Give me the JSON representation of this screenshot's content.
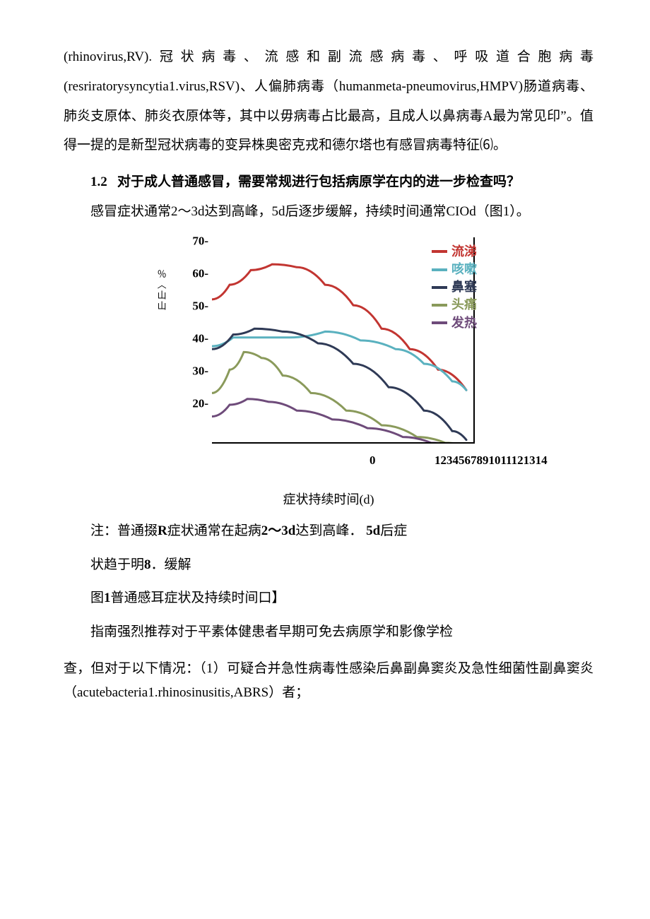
{
  "para1": "(rhinovirus,RV).冠状病毒、流感和副流感病毒、呼吸道合胞病毒(resriratorysyncytia1.virus,RSV)、人偏肺病毒（humanmeta-pneumovirus,HMPV)肠道病毒、肺炎支原体、肺炎衣原体等，其中以毋病毒占比最高，且成人以鼻病毒A最为常见印”。值得一提的是新型冠状病毒的变异株奥密克戎和德尔塔也有感冒病毒特征⑹。",
  "section": {
    "num": "1.2",
    "title": "对于成人普通感冒，需要常规进行包括病原学在内的进一步检查吗？"
  },
  "para2": "感冒症状通常2～3d达到高峰，5d后逐步缓解，持续时间通常CIOd（图1）。",
  "chart": {
    "type": "line",
    "y_ticks": [
      "70-",
      "60-",
      "50-",
      "40-",
      "30-",
      "20-"
    ],
    "y_positions": [
      10,
      56,
      102,
      148,
      194,
      240
    ],
    "y_label": "％〈山山",
    "x_zero": "0",
    "x_nums": "1234567891011121314",
    "background_color": "#ffffff",
    "border_color": "#000000",
    "legend": [
      {
        "label": "流涕",
        "color": "#c23531"
      },
      {
        "label": "咳嗽",
        "color": "#5ab1bf"
      },
      {
        "label": "鼻塞",
        "color": "#2f3a56"
      },
      {
        "label": "头痛",
        "color": "#8a9a5b"
      },
      {
        "label": "发热",
        "color": "#6e4b7a"
      }
    ],
    "series": [
      {
        "name": "runny",
        "color": "#c23531",
        "width": 3,
        "points": [
          [
            0,
            50
          ],
          [
            25,
            55
          ],
          [
            55,
            60
          ],
          [
            85,
            62
          ],
          [
            120,
            61
          ],
          [
            160,
            55
          ],
          [
            200,
            48
          ],
          [
            240,
            40
          ],
          [
            280,
            33
          ],
          [
            320,
            26
          ],
          [
            360,
            19
          ]
        ]
      },
      {
        "name": "cough",
        "color": "#5ab1bf",
        "width": 3,
        "points": [
          [
            0,
            34
          ],
          [
            30,
            37
          ],
          [
            70,
            37
          ],
          [
            110,
            37
          ],
          [
            160,
            39
          ],
          [
            210,
            36
          ],
          [
            260,
            33
          ],
          [
            300,
            28
          ],
          [
            340,
            22
          ],
          [
            360,
            19
          ]
        ]
      },
      {
        "name": "congestion",
        "color": "#2f3a56",
        "width": 3,
        "points": [
          [
            0,
            33
          ],
          [
            30,
            38
          ],
          [
            60,
            40
          ],
          [
            100,
            39
          ],
          [
            150,
            35
          ],
          [
            200,
            28
          ],
          [
            250,
            20
          ],
          [
            300,
            12
          ],
          [
            340,
            5
          ],
          [
            360,
            2
          ]
        ]
      },
      {
        "name": "headache",
        "color": "#8a9a5b",
        "width": 3,
        "points": [
          [
            0,
            18
          ],
          [
            25,
            26
          ],
          [
            45,
            32
          ],
          [
            70,
            30
          ],
          [
            100,
            24
          ],
          [
            140,
            18
          ],
          [
            190,
            12
          ],
          [
            240,
            7
          ],
          [
            290,
            3
          ],
          [
            330,
            1
          ],
          [
            360,
            0
          ]
        ]
      },
      {
        "name": "fever",
        "color": "#6e4b7a",
        "width": 3,
        "points": [
          [
            0,
            10
          ],
          [
            25,
            14
          ],
          [
            50,
            16
          ],
          [
            80,
            15
          ],
          [
            120,
            12
          ],
          [
            170,
            9
          ],
          [
            220,
            6
          ],
          [
            270,
            3
          ],
          [
            310,
            1
          ],
          [
            340,
            0
          ]
        ]
      }
    ]
  },
  "caption_axis": "症状持续时间(d)",
  "note1_a": "注：普通掇",
  "note1_b": "R",
  "note1_c": "症状通常在起病",
  "note1_d": "2～3d",
  "note1_e": "达到高峰．",
  "note1_f": "5d",
  "note1_g": "后症",
  "note2_a": "状趋于明",
  "note2_b": "8",
  "note2_c": "．缓解",
  "fig_label_a": "图",
  "fig_label_b": "1",
  "fig_label_c": "普通感耳症状及持续时间口】",
  "para3": "指南强烈推荐对于平素体健患者早期可免去病原学和影像学检",
  "para4": "查，但对于以下情况：（1）可疑合并急性病毒性感染后鼻副鼻窦炎及急性细菌性副鼻窦炎（acutebacteria1.rhinosinusitis,ABRS）者；"
}
